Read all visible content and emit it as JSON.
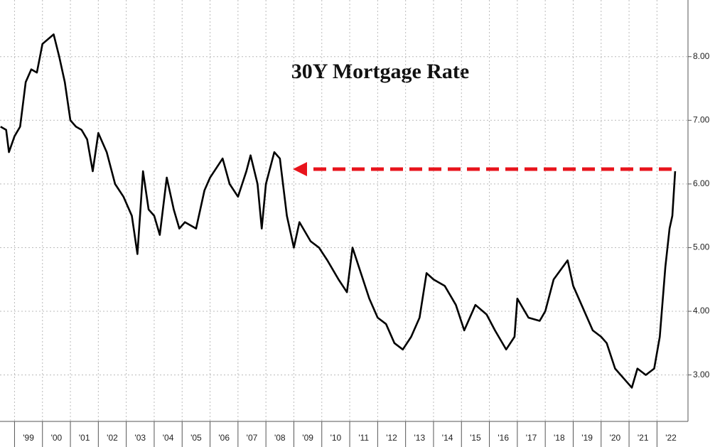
{
  "chart_data": {
    "type": "line",
    "title": "30Y Mortgage Rate",
    "x": [
      1998.5,
      1998.7,
      1998.8,
      1999.0,
      1999.2,
      1999.4,
      1999.6,
      1999.8,
      2000.0,
      2000.4,
      2000.6,
      2000.8,
      2001.0,
      2001.2,
      2001.4,
      2001.6,
      2001.8,
      2002.0,
      2002.3,
      2002.6,
      2002.9,
      2003.2,
      2003.4,
      2003.6,
      2003.8,
      2004.0,
      2004.2,
      2004.45,
      2004.7,
      2004.9,
      2005.1,
      2005.5,
      2005.8,
      2006.0,
      2006.45,
      2006.7,
      2007.0,
      2007.3,
      2007.45,
      2007.7,
      2007.85,
      2008.0,
      2008.3,
      2008.5,
      2008.75,
      2009.0,
      2009.2,
      2009.6,
      2009.9,
      2010.2,
      2010.6,
      2010.9,
      2011.1,
      2011.4,
      2011.7,
      2012.0,
      2012.3,
      2012.6,
      2012.9,
      2013.2,
      2013.5,
      2013.75,
      2014.0,
      2014.4,
      2014.8,
      2015.1,
      2015.5,
      2015.9,
      2016.2,
      2016.6,
      2016.9,
      2017.0,
      2017.4,
      2017.8,
      2018.0,
      2018.3,
      2018.8,
      2019.0,
      2019.3,
      2019.7,
      2020.0,
      2020.2,
      2020.5,
      2020.9,
      2021.1,
      2021.3,
      2021.6,
      2021.9,
      2022.1,
      2022.3,
      2022.45,
      2022.55,
      2022.65
    ],
    "series": [
      {
        "name": "30Y Mortgage Rate",
        "color": "#000000",
        "values": [
          6.9,
          6.85,
          6.5,
          6.75,
          6.9,
          7.6,
          7.8,
          7.75,
          8.2,
          8.35,
          8.0,
          7.6,
          7.0,
          6.9,
          6.85,
          6.7,
          6.2,
          6.8,
          6.5,
          6.0,
          5.8,
          5.5,
          4.9,
          6.2,
          5.6,
          5.5,
          5.2,
          6.1,
          5.6,
          5.3,
          5.4,
          5.3,
          5.9,
          6.1,
          6.4,
          6.0,
          5.8,
          6.2,
          6.45,
          6.0,
          5.3,
          6.0,
          6.5,
          6.4,
          5.5,
          5.0,
          5.4,
          5.1,
          5.0,
          4.8,
          4.5,
          4.3,
          5.0,
          4.6,
          4.2,
          3.9,
          3.8,
          3.5,
          3.4,
          3.6,
          3.9,
          4.6,
          4.5,
          4.4,
          4.1,
          3.7,
          4.1,
          3.95,
          3.7,
          3.4,
          3.6,
          4.2,
          3.9,
          3.85,
          4.0,
          4.5,
          4.8,
          4.4,
          4.1,
          3.7,
          3.6,
          3.5,
          3.1,
          2.9,
          2.8,
          3.1,
          3.0,
          3.1,
          3.6,
          4.7,
          5.3,
          5.5,
          6.2
        ]
      }
    ],
    "xlim": [
      1998.48,
      2023.11
    ],
    "xticks": [
      {
        "value": 1999,
        "label": "'99"
      },
      {
        "value": 2000,
        "label": "'00"
      },
      {
        "value": 2001,
        "label": "'01"
      },
      {
        "value": 2002,
        "label": "'02"
      },
      {
        "value": 2003,
        "label": "'03"
      },
      {
        "value": 2004,
        "label": "'04"
      },
      {
        "value": 2005,
        "label": "'05"
      },
      {
        "value": 2006,
        "label": "'06"
      },
      {
        "value": 2007,
        "label": "'07"
      },
      {
        "value": 2008,
        "label": "'08"
      },
      {
        "value": 2009,
        "label": "'09"
      },
      {
        "value": 2010,
        "label": "'10"
      },
      {
        "value": 2011,
        "label": "'11"
      },
      {
        "value": 2012,
        "label": "'12"
      },
      {
        "value": 2013,
        "label": "'13"
      },
      {
        "value": 2014,
        "label": "'14"
      },
      {
        "value": 2015,
        "label": "'15"
      },
      {
        "value": 2016,
        "label": "'16"
      },
      {
        "value": 2017,
        "label": "'17"
      },
      {
        "value": 2018,
        "label": "'18"
      },
      {
        "value": 2019,
        "label": "'19"
      },
      {
        "value": 2020,
        "label": "'20"
      },
      {
        "value": 2021,
        "label": "'21"
      },
      {
        "value": 2022,
        "label": "'22"
      }
    ],
    "ylim": [
      2.27,
      8.89
    ],
    "yticks": [
      {
        "value": 3,
        "label": "3.00"
      },
      {
        "value": 4,
        "label": "4.00"
      },
      {
        "value": 5,
        "label": "5.00"
      },
      {
        "value": 6,
        "label": "6.00"
      },
      {
        "value": 7,
        "label": "7.00"
      },
      {
        "value": 8,
        "label": "8.00"
      }
    ],
    "grid": true
  }
}
